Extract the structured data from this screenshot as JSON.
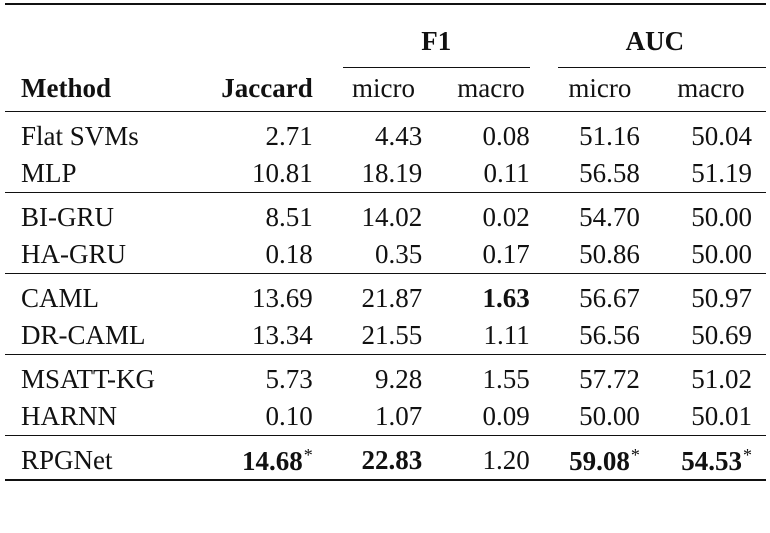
{
  "table": {
    "group_headers": {
      "f1": "F1",
      "auc": "AUC"
    },
    "column_headers": {
      "method": "Method",
      "jaccard": "Jaccard",
      "f1_micro": "micro",
      "f1_macro": "macro",
      "auc_micro": "micro",
      "auc_macro": "macro"
    },
    "rows": [
      {
        "method": "Flat SVMs",
        "jaccard": "2.71",
        "f1_micro": "4.43",
        "f1_macro": "0.08",
        "auc_micro": "51.16",
        "auc_macro": "50.04"
      },
      {
        "method": "MLP",
        "jaccard": "10.81",
        "f1_micro": "18.19",
        "f1_macro": "0.11",
        "auc_micro": "56.58",
        "auc_macro": "51.19"
      },
      {
        "method": "BI-GRU",
        "jaccard": "8.51",
        "f1_micro": "14.02",
        "f1_macro": "0.02",
        "auc_micro": "54.70",
        "auc_macro": "50.00"
      },
      {
        "method": "HA-GRU",
        "jaccard": "0.18",
        "f1_micro": "0.35",
        "f1_macro": "0.17",
        "auc_micro": "50.86",
        "auc_macro": "50.00"
      },
      {
        "method": "CAML",
        "jaccard": "13.69",
        "f1_micro": "21.87",
        "f1_macro": "1.63",
        "auc_micro": "56.67",
        "auc_macro": "50.97"
      },
      {
        "method": "DR-CAML",
        "jaccard": "13.34",
        "f1_micro": "21.55",
        "f1_macro": "1.11",
        "auc_micro": "56.56",
        "auc_macro": "50.69"
      },
      {
        "method": "MSATT-KG",
        "jaccard": "5.73",
        "f1_micro": "9.28",
        "f1_macro": "1.55",
        "auc_micro": "57.72",
        "auc_macro": "51.02"
      },
      {
        "method": "HARNN",
        "jaccard": "0.10",
        "f1_micro": "1.07",
        "f1_macro": "0.09",
        "auc_micro": "50.00",
        "auc_macro": "50.01"
      },
      {
        "method": "RPGNet",
        "jaccard": "14.68",
        "f1_micro": "22.83",
        "f1_macro": "1.20",
        "auc_micro": "59.08",
        "auc_macro": "54.53"
      }
    ],
    "significance_mark": "*"
  }
}
